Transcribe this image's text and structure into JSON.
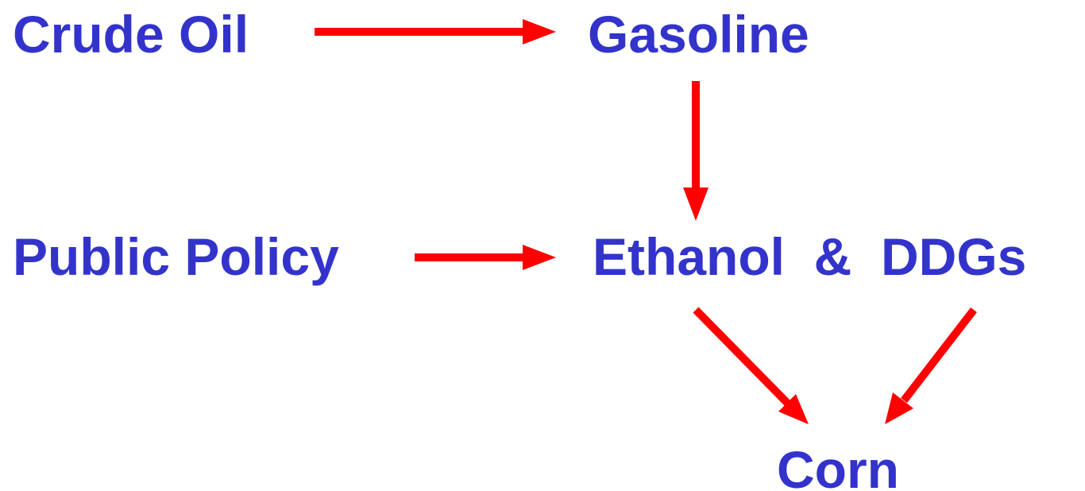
{
  "nodes": [
    {
      "label": "Crude Oil"
    },
    {
      "label": "Gasoline"
    },
    {
      "label": "Public Policy"
    },
    {
      "label": "Ethanol  &  DDGs"
    },
    {
      "label": "Corn"
    }
  ]
}
